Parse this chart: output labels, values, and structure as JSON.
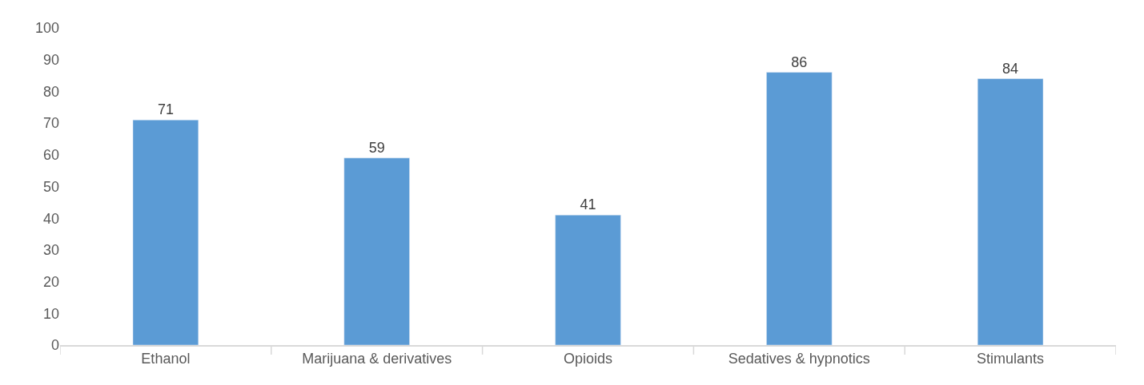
{
  "chart_data": {
    "type": "bar",
    "categories": [
      "Ethanol",
      "Marijuana & derivatives",
      "Opioids",
      "Sedatives & hypnotics",
      "Stimulants"
    ],
    "values": [
      71,
      59,
      41,
      86,
      84
    ],
    "color": "#5b9bd5",
    "ylim": [
      0,
      100
    ],
    "yticks": [
      0,
      10,
      20,
      30,
      40,
      50,
      60,
      70,
      80,
      90,
      100
    ],
    "data_labels": true
  }
}
